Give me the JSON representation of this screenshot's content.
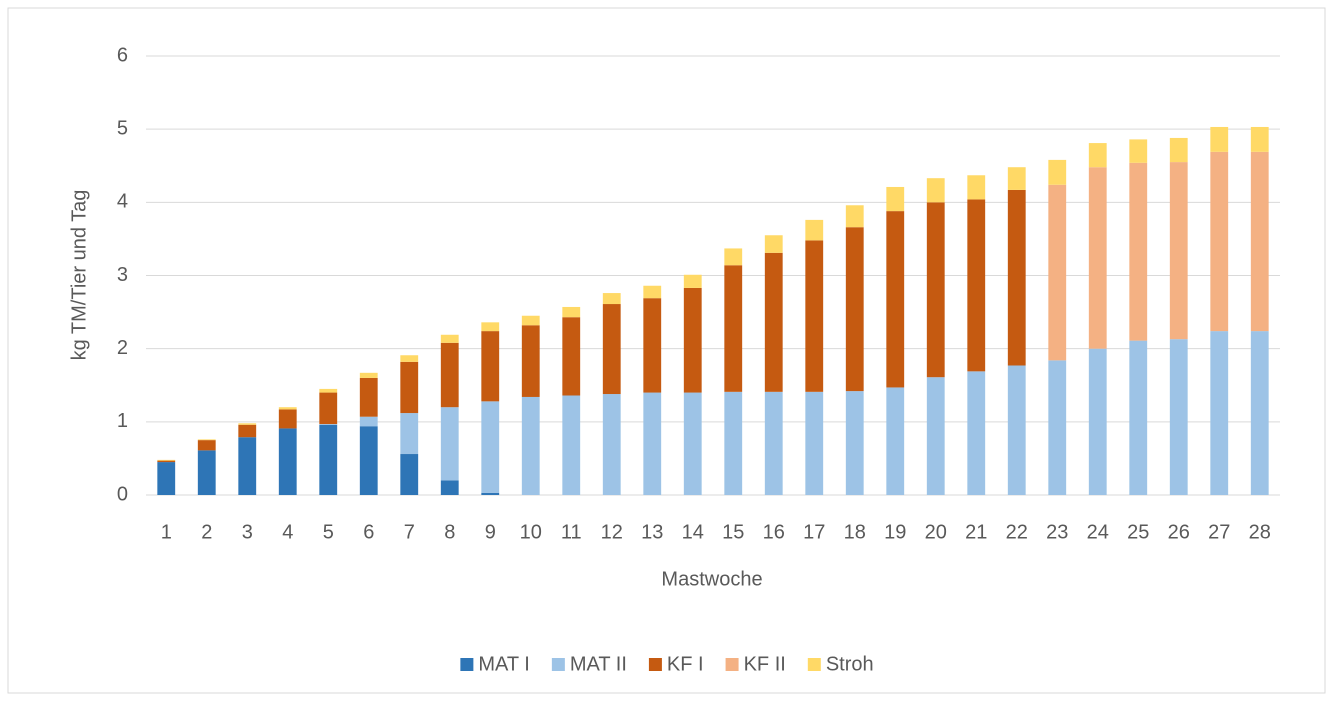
{
  "chart_data": {
    "type": "stacked_bar",
    "x_label": "Mastwoche",
    "y_label": "kg TM/Tier und Tag",
    "categories": [
      "1",
      "2",
      "3",
      "4",
      "5",
      "6",
      "7",
      "8",
      "9",
      "10",
      "11",
      "12",
      "13",
      "14",
      "15",
      "16",
      "17",
      "18",
      "19",
      "20",
      "21",
      "22",
      "23",
      "24",
      "25",
      "26",
      "27",
      "28"
    ],
    "series": [
      {
        "name": "MAT I",
        "color": "#2e75b6",
        "values": [
          0.45,
          0.61,
          0.79,
          0.91,
          0.96,
          0.94,
          0.56,
          0.2,
          0.03,
          0,
          0,
          0,
          0,
          0,
          0,
          0,
          0,
          0,
          0,
          0,
          0,
          0,
          0,
          0,
          0,
          0,
          0,
          0
        ]
      },
      {
        "name": "MAT II",
        "color": "#9dc3e6",
        "values": [
          0,
          0,
          0,
          0,
          0.01,
          0.13,
          0.56,
          1.0,
          1.25,
          1.34,
          1.36,
          1.38,
          1.4,
          1.4,
          1.41,
          1.41,
          1.41,
          1.42,
          1.47,
          1.61,
          1.69,
          1.77,
          1.84,
          2.0,
          2.11,
          2.13,
          2.24,
          2.24
        ]
      },
      {
        "name": "KF I",
        "color": "#c55a11",
        "values": [
          0.02,
          0.14,
          0.17,
          0.26,
          0.43,
          0.53,
          0.7,
          0.88,
          0.96,
          0.98,
          1.07,
          1.23,
          1.29,
          1.43,
          1.73,
          1.9,
          2.07,
          2.24,
          2.41,
          2.39,
          2.35,
          2.4,
          0,
          0,
          0,
          0,
          0,
          0
        ]
      },
      {
        "name": "KF II",
        "color": "#f4b183",
        "values": [
          0,
          0,
          0,
          0,
          0,
          0,
          0,
          0,
          0,
          0,
          0,
          0,
          0,
          0,
          0,
          0,
          0,
          0,
          0,
          0,
          0,
          0,
          2.4,
          2.48,
          2.43,
          2.42,
          2.45,
          2.45
        ]
      },
      {
        "name": "Stroh",
        "color": "#ffd966",
        "values": [
          0.01,
          0.01,
          0.02,
          0.03,
          0.05,
          0.07,
          0.09,
          0.11,
          0.12,
          0.13,
          0.14,
          0.15,
          0.17,
          0.18,
          0.23,
          0.24,
          0.28,
          0.3,
          0.33,
          0.33,
          0.33,
          0.31,
          0.34,
          0.33,
          0.32,
          0.33,
          0.34,
          0.34
        ]
      }
    ],
    "ylim": [
      0,
      6
    ],
    "yticks": [
      0,
      1,
      2,
      3,
      4,
      5,
      6
    ],
    "grid": true,
    "legend": "bottom"
  }
}
